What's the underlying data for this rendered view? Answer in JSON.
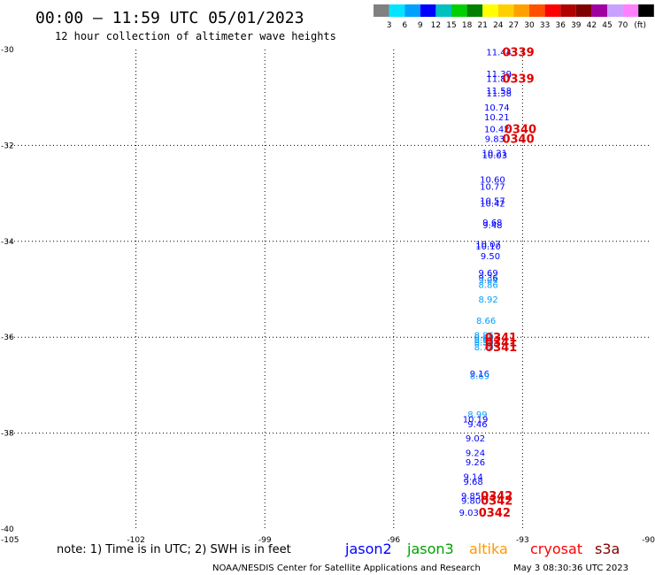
{
  "header": {
    "title": "00:00 – 11:59 UTC 05/01/2023",
    "subtitle": "12 hour collection of altimeter wave heights"
  },
  "color_scale": {
    "labels": [
      "3",
      "6",
      "9",
      "12",
      "15",
      "18",
      "21",
      "24",
      "27",
      "30",
      "33",
      "36",
      "39",
      "42",
      "45",
      "70"
    ],
    "unit": "(ft)",
    "colors": [
      "#808080",
      "#00e5ff",
      "#00a0ff",
      "#0000ff",
      "#00c0c0",
      "#00d000",
      "#008000",
      "#ffff00",
      "#ffd000",
      "#ffa000",
      "#ff5000",
      "#ff0000",
      "#b00000",
      "#800000",
      "#a000a0",
      "#c8a0ff",
      "#ff80ff",
      "#000000"
    ]
  },
  "footer": {
    "note": "note:  1) Time is in UTC;  2) SWH is in feet",
    "satellites": [
      {
        "name": "jason2",
        "color": "#0000ff"
      },
      {
        "name": "jason3",
        "color": "#00a000"
      },
      {
        "name": "altika",
        "color": "#ff9900"
      },
      {
        "name": "cryosat",
        "color": "#ff0000"
      },
      {
        "name": "s3a",
        "color": "#800000"
      }
    ],
    "credit": "NOAA/NESDIS Center for Satellite Applications and Research",
    "timestamp": "May  3 08:30:36 UTC 2023"
  },
  "chart_data": {
    "type": "scatter",
    "title": "00:00 – 11:59 UTC 05/01/2023",
    "subtitle": "12 hour collection of altimeter wave heights",
    "xlim": [
      -105,
      -90
    ],
    "ylim": [
      -40,
      -30
    ],
    "x_ticks": [
      -105,
      -102,
      -99,
      -96,
      -93,
      -90
    ],
    "y_ticks": [
      -30,
      -32,
      -34,
      -36,
      -38,
      -40
    ],
    "x_tick_labels": [
      "-105",
      "-102",
      "-99",
      "-96",
      "-93",
      "-90"
    ],
    "y_tick_labels": [
      "-30",
      "-32",
      "-34",
      "-36",
      "-38",
      "-40"
    ],
    "grid": true,
    "points": [
      {
        "lon": -93.55,
        "lat": -30.05,
        "swh": "11.44",
        "color": "#0000ff"
      },
      {
        "lon": -93.55,
        "lat": -30.5,
        "swh": "11.39",
        "color": "#0000ff"
      },
      {
        "lon": -93.55,
        "lat": -30.6,
        "swh": "11.87",
        "color": "#0000ff"
      },
      {
        "lon": -93.55,
        "lat": -30.85,
        "swh": "11.58",
        "color": "#0000ff"
      },
      {
        "lon": -93.55,
        "lat": -30.9,
        "swh": "11.38",
        "color": "#0000ff"
      },
      {
        "lon": -93.6,
        "lat": -31.2,
        "swh": "10.74",
        "color": "#0000ff"
      },
      {
        "lon": -93.6,
        "lat": -31.4,
        "swh": "10.21",
        "color": "#0000ff"
      },
      {
        "lon": -93.6,
        "lat": -31.65,
        "swh": "10.42",
        "color": "#0000ff"
      },
      {
        "lon": -93.65,
        "lat": -31.85,
        "swh": "9.83",
        "color": "#0000ff"
      },
      {
        "lon": -93.65,
        "lat": -32.15,
        "swh": "10.21",
        "color": "#0000ff"
      },
      {
        "lon": -93.65,
        "lat": -32.2,
        "swh": "10.03",
        "color": "#0000ff"
      },
      {
        "lon": -93.7,
        "lat": -32.7,
        "swh": "10.60",
        "color": "#0000ff"
      },
      {
        "lon": -93.7,
        "lat": -32.85,
        "swh": "10.77",
        "color": "#0000ff"
      },
      {
        "lon": -93.7,
        "lat": -33.15,
        "swh": "10.57",
        "color": "#0000ff"
      },
      {
        "lon": -93.7,
        "lat": -33.2,
        "swh": "10.42",
        "color": "#0000ff"
      },
      {
        "lon": -93.7,
        "lat": -33.6,
        "swh": "9.68",
        "color": "#0000ff"
      },
      {
        "lon": -93.7,
        "lat": -33.65,
        "swh": "9.48",
        "color": "#0000ff"
      },
      {
        "lon": -93.8,
        "lat": -34.05,
        "swh": "10.07",
        "color": "#0000ff"
      },
      {
        "lon": -93.8,
        "lat": -34.1,
        "swh": "10.10",
        "color": "#0000ff"
      },
      {
        "lon": -93.75,
        "lat": -34.3,
        "swh": "9.50",
        "color": "#0000ff"
      },
      {
        "lon": -93.8,
        "lat": -34.65,
        "swh": "9.69",
        "color": "#0000ff"
      },
      {
        "lon": -93.8,
        "lat": -34.75,
        "swh": "9.36",
        "color": "#0000ff"
      },
      {
        "lon": -93.8,
        "lat": -34.8,
        "swh": "9.04",
        "color": "#00a0ff"
      },
      {
        "lon": -93.8,
        "lat": -34.9,
        "swh": "8.86",
        "color": "#00a0ff"
      },
      {
        "lon": -93.8,
        "lat": -35.2,
        "swh": "8.92",
        "color": "#00a0ff"
      },
      {
        "lon": -93.85,
        "lat": -35.65,
        "swh": "8.66",
        "color": "#00a0ff"
      },
      {
        "lon": -93.9,
        "lat": -35.95,
        "swh": "8.86",
        "color": "#00a0ff"
      },
      {
        "lon": -93.9,
        "lat": -36.0,
        "swh": "8.40",
        "color": "#00a0ff"
      },
      {
        "lon": -93.9,
        "lat": -36.05,
        "swh": "8.91",
        "color": "#00a0ff"
      },
      {
        "lon": -93.9,
        "lat": -36.1,
        "swh": "8.50",
        "color": "#00a0ff"
      },
      {
        "lon": -93.9,
        "lat": -36.2,
        "swh": "8.70",
        "color": "#00a0ff"
      },
      {
        "lon": -94.0,
        "lat": -36.75,
        "swh": "9.16",
        "color": "#0000ff"
      },
      {
        "lon": -94.0,
        "lat": -36.8,
        "swh": "8.69",
        "color": "#00a0ff"
      },
      {
        "lon": -94.05,
        "lat": -37.6,
        "swh": "8.99",
        "color": "#00a0ff"
      },
      {
        "lon": -94.1,
        "lat": -37.7,
        "swh": "10.19",
        "color": "#0000ff"
      },
      {
        "lon": -94.05,
        "lat": -37.8,
        "swh": "9.46",
        "color": "#0000ff"
      },
      {
        "lon": -94.1,
        "lat": -38.1,
        "swh": "9.02",
        "color": "#0000ff"
      },
      {
        "lon": -94.1,
        "lat": -38.4,
        "swh": "9.24",
        "color": "#0000ff"
      },
      {
        "lon": -94.1,
        "lat": -38.6,
        "swh": "9.26",
        "color": "#0000ff"
      },
      {
        "lon": -94.15,
        "lat": -38.9,
        "swh": "9.14",
        "color": "#0000ff"
      },
      {
        "lon": -94.15,
        "lat": -39.0,
        "swh": "9.68",
        "color": "#0000ff"
      },
      {
        "lon": -94.2,
        "lat": -39.3,
        "swh": "9.85",
        "color": "#0000ff"
      },
      {
        "lon": -94.2,
        "lat": -39.4,
        "swh": "9.80",
        "color": "#0000ff"
      },
      {
        "lon": -94.25,
        "lat": -39.65,
        "swh": "9.03",
        "color": "#0000ff"
      }
    ],
    "pass_times": [
      {
        "lon": -93.1,
        "lat": -30.05,
        "label": "0339"
      },
      {
        "lon": -93.1,
        "lat": -30.6,
        "label": "0339"
      },
      {
        "lon": -93.05,
        "lat": -31.65,
        "label": "0340"
      },
      {
        "lon": -93.1,
        "lat": -31.85,
        "label": "0340"
      },
      {
        "lon": -93.5,
        "lat": -36.0,
        "label": "0341"
      },
      {
        "lon": -93.5,
        "lat": -36.1,
        "label": "0341"
      },
      {
        "lon": -93.5,
        "lat": -36.2,
        "label": "0341"
      },
      {
        "lon": -93.6,
        "lat": -39.3,
        "label": "0342"
      },
      {
        "lon": -93.6,
        "lat": -39.4,
        "label": "0342"
      },
      {
        "lon": -93.65,
        "lat": -39.65,
        "label": "0342"
      }
    ]
  }
}
